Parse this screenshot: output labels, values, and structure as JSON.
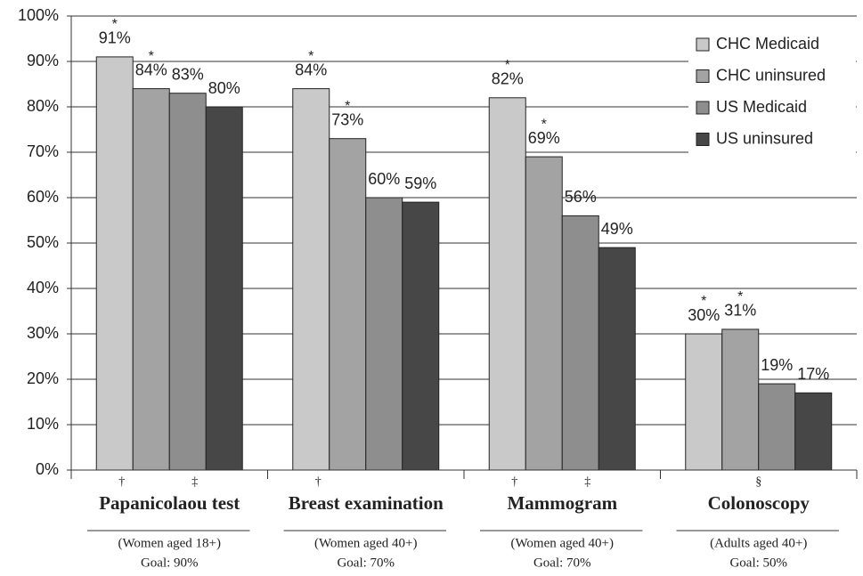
{
  "chart_data": {
    "type": "bar",
    "categories": [
      "Papanicolaou test",
      "Breast examination",
      "Mammogram",
      "Colonoscopy"
    ],
    "populations": [
      "(Women aged 18+)",
      "(Women aged 40+)",
      "(Women aged 40+)",
      "(Adults aged 40+)"
    ],
    "goals": [
      "Goal: 90%",
      "Goal: 70%",
      "Goal: 70%",
      "Goal: 50%"
    ],
    "footnote_marks": [
      [
        "†",
        null,
        "‡",
        null
      ],
      [
        "†",
        null,
        null,
        null
      ],
      [
        "†",
        null,
        "‡",
        null
      ],
      null
    ],
    "group_marks": [
      null,
      null,
      null,
      "§"
    ],
    "series": [
      {
        "name": "CHC Medicaid",
        "color": "#c9c9c9",
        "values": [
          91,
          84,
          82,
          30
        ],
        "value_labels": [
          "91%",
          "84%",
          "82%",
          "30%"
        ],
        "markers": [
          "*",
          "*",
          "*",
          "*"
        ]
      },
      {
        "name": "CHC uninsured",
        "color": "#a3a3a3",
        "values": [
          84,
          73,
          69,
          31
        ],
        "value_labels": [
          "84%",
          "73%",
          "69%",
          "31%"
        ],
        "markers": [
          "*",
          "*",
          "*",
          "*"
        ]
      },
      {
        "name": "US Medicaid",
        "color": "#8e8e8e",
        "values": [
          83,
          60,
          56,
          19
        ],
        "value_labels": [
          "83%",
          "60%",
          "56%",
          "19%"
        ]
      },
      {
        "name": "US uninsured",
        "color": "#474747",
        "values": [
          80,
          59,
          49,
          17
        ],
        "value_labels": [
          "80%",
          "59%",
          "49%",
          "17%"
        ]
      }
    ],
    "ylim": [
      0,
      100
    ],
    "yticks": [
      {
        "value": 0,
        "label": "0%"
      },
      {
        "value": 10,
        "label": "10%"
      },
      {
        "value": 20,
        "label": "20%"
      },
      {
        "value": 30,
        "label": "30%"
      },
      {
        "value": 40,
        "label": "40%"
      },
      {
        "value": 50,
        "label": "50%"
      },
      {
        "value": 60,
        "label": "60%"
      },
      {
        "value": 70,
        "label": "70%"
      },
      {
        "value": 80,
        "label": "80%"
      },
      {
        "value": 90,
        "label": "90%"
      },
      {
        "value": 100,
        "label": "100%"
      }
    ],
    "grid": true,
    "legend": "upper right"
  }
}
